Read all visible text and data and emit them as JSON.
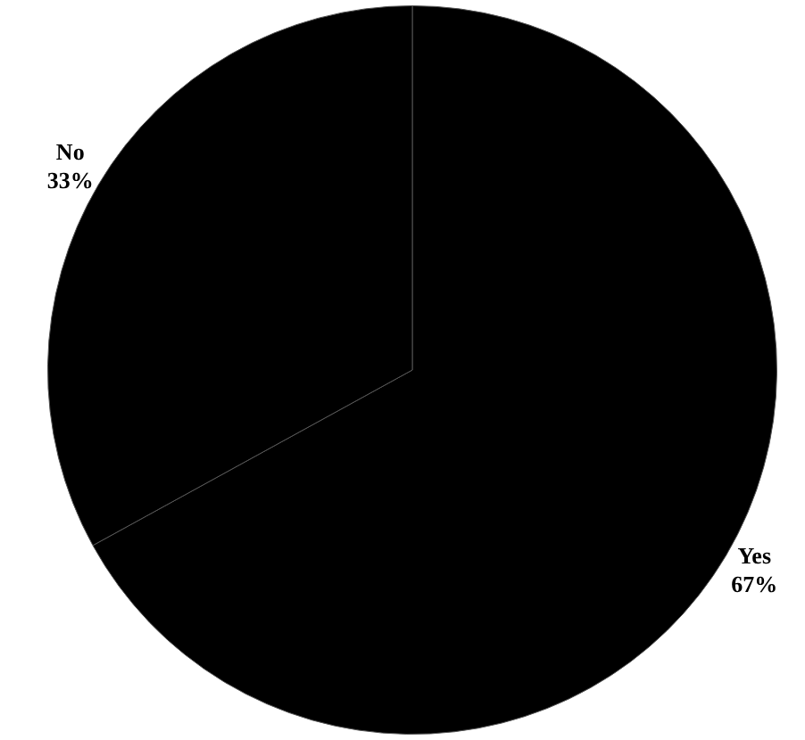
{
  "chart_data": {
    "type": "pie",
    "categories": [
      "Yes",
      "No"
    ],
    "values": [
      67,
      33
    ],
    "colors": [
      "#000000",
      "#000000"
    ],
    "value_labels": [
      "67%",
      "33%"
    ],
    "legend": false
  }
}
